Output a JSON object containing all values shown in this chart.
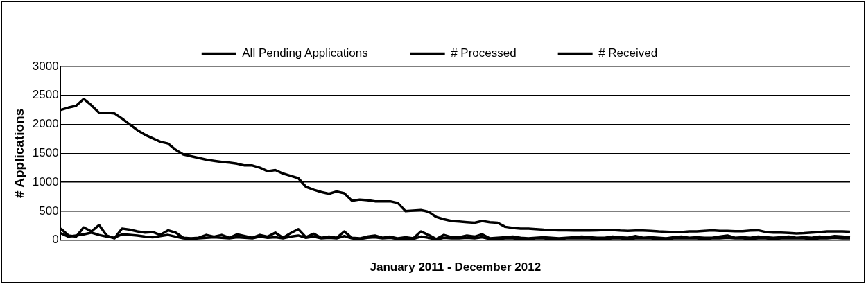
{
  "chart_data": {
    "type": "line",
    "xlabel": "January 2011 - December 2012",
    "ylabel": "# Applications",
    "categories": [
      null,
      null,
      null,
      null,
      null,
      null,
      null,
      null,
      null,
      null,
      null,
      null,
      null,
      null,
      null,
      null,
      null,
      null,
      null,
      null,
      null,
      null,
      null,
      null,
      null,
      null,
      null,
      null,
      null,
      null,
      null,
      null,
      null,
      null,
      null,
      null,
      null,
      null,
      null,
      null,
      null,
      null,
      null,
      null,
      null,
      null,
      null,
      null,
      null,
      null,
      null,
      null,
      null,
      null,
      null,
      null,
      null,
      null,
      null,
      null,
      null,
      null,
      null,
      null,
      null,
      null,
      null,
      null,
      null,
      null,
      null,
      null,
      null,
      null,
      null,
      null,
      null,
      null,
      null,
      null,
      null,
      null,
      null,
      null,
      null,
      null,
      null,
      null,
      null,
      null,
      null,
      null,
      null,
      null,
      null,
      null,
      null,
      null,
      null,
      null,
      null,
      null,
      null,
      null
    ],
    "series": [
      {
        "name": "All Pending Applications",
        "color": "#000000",
        "values": [
          2250,
          2290,
          2320,
          2440,
          2330,
          2200,
          2200,
          2190,
          2100,
          2000,
          1900,
          1820,
          1760,
          1700,
          1670,
          1560,
          1480,
          1450,
          1420,
          1390,
          1370,
          1350,
          1340,
          1320,
          1290,
          1290,
          1250,
          1190,
          1210,
          1150,
          1110,
          1070,
          920,
          870,
          830,
          800,
          840,
          810,
          680,
          700,
          690,
          670,
          670,
          670,
          640,
          500,
          510,
          520,
          490,
          400,
          360,
          330,
          320,
          310,
          300,
          330,
          310,
          300,
          230,
          210,
          200,
          200,
          190,
          180,
          175,
          170,
          170,
          165,
          165,
          165,
          170,
          175,
          175,
          165,
          160,
          165,
          165,
          160,
          150,
          145,
          140,
          140,
          150,
          150,
          160,
          170,
          160,
          160,
          155,
          155,
          165,
          170,
          140,
          130,
          130,
          125,
          115,
          120,
          130,
          140,
          150,
          150,
          150,
          145
        ]
      },
      {
        "name": "# Processed",
        "color": "#000000",
        "values": [
          200,
          80,
          60,
          220,
          150,
          260,
          80,
          30,
          200,
          180,
          150,
          130,
          140,
          90,
          170,
          130,
          40,
          30,
          40,
          90,
          60,
          90,
          40,
          100,
          70,
          40,
          90,
          60,
          130,
          40,
          120,
          190,
          50,
          110,
          40,
          60,
          40,
          150,
          40,
          30,
          60,
          80,
          40,
          60,
          30,
          50,
          30,
          150,
          90,
          20,
          90,
          50,
          50,
          80,
          60,
          100,
          30,
          40,
          50,
          60,
          40,
          30,
          40,
          50,
          40,
          30,
          40,
          50,
          60,
          50,
          40,
          40,
          60,
          50,
          40,
          70,
          40,
          50,
          40,
          30,
          50,
          60,
          40,
          50,
          40,
          40,
          60,
          80,
          40,
          50,
          40,
          60,
          50,
          40,
          50,
          60,
          40,
          50,
          40,
          60,
          50,
          70,
          60,
          50
        ]
      },
      {
        "name": "# Received",
        "color": "#000000",
        "values": [
          120,
          60,
          80,
          100,
          130,
          90,
          60,
          40,
          100,
          90,
          80,
          60,
          50,
          70,
          90,
          60,
          30,
          20,
          30,
          40,
          50,
          40,
          30,
          50,
          40,
          30,
          60,
          40,
          50,
          30,
          60,
          80,
          40,
          60,
          30,
          40,
          30,
          70,
          30,
          20,
          40,
          50,
          30,
          40,
          20,
          30,
          20,
          60,
          40,
          10,
          40,
          30,
          30,
          40,
          30,
          50,
          20,
          20,
          30,
          30,
          20,
          20,
          30,
          30,
          20,
          20,
          30,
          30,
          30,
          30,
          20,
          20,
          30,
          30,
          20,
          30,
          30,
          30,
          20,
          20,
          30,
          30,
          30,
          30,
          20,
          30,
          30,
          40,
          30,
          30,
          20,
          30,
          30,
          20,
          30,
          30,
          30,
          30,
          20,
          30,
          30,
          40,
          30,
          30
        ]
      }
    ],
    "ylim": [
      0,
      3000
    ],
    "yticks": [
      0,
      500,
      1000,
      1500,
      2000,
      2500,
      3000
    ],
    "grid": "y",
    "legend": "top",
    "tick_labels": "y",
    "marker": "none",
    "line_style": "solid"
  }
}
